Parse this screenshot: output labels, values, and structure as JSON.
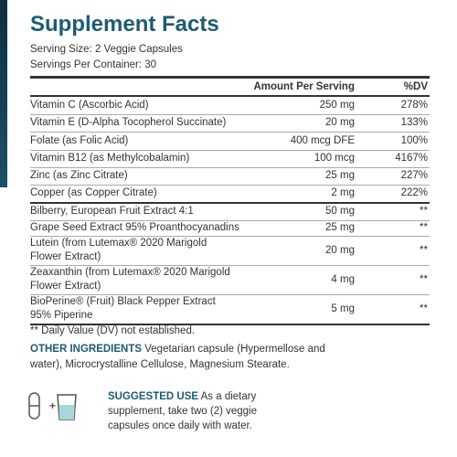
{
  "header": {
    "title": "Supplement Facts",
    "serving_size": "Serving Size: 2 Veggie Capsules",
    "servings_per_container": "Servings Per Container: 30"
  },
  "table": {
    "columns": [
      "Amount Per Serving",
      "%DV"
    ],
    "groups": [
      [
        [
          "Vitamin C (Ascorbic Acid)",
          "250 mg",
          "278%"
        ],
        [
          "Vitamin E (D-Alpha Tocopherol Succinate)",
          "20 mg",
          "133%"
        ],
        [
          "Folate (as Folic Acid)",
          "400 mcg DFE",
          "100%"
        ],
        [
          "Vitamin B12 (as Methylcobalamin)",
          "100 mcg",
          "4167%"
        ],
        [
          "Zinc (as Zinc Citrate)",
          "25 mg",
          "227%"
        ],
        [
          "Copper (as Copper Citrate)",
          "2 mg",
          "222%"
        ]
      ],
      [
        [
          "Bilberry, European Fruit Extract 4:1",
          "50 mg",
          "**"
        ],
        [
          "Grape Seed Extract 95% Proanthocyanadins",
          "25 mg",
          "**"
        ],
        [
          "Lutein (from Lutemax® 2020 Marigold\nFlower Extract)",
          "20 mg",
          "**"
        ],
        [
          "Zeaxanthin (from Lutemax® 2020 Marigold\nFlower Extract)",
          "4 mg",
          "**"
        ],
        [
          "BioPerine® (Fruit) Black Pepper Extract\n95% Piperine",
          "5 mg",
          "**"
        ]
      ]
    ]
  },
  "footnote": "** Daily Value (DV) not established.",
  "other_ingredients": {
    "label": "OTHER INGREDIENTS",
    "text": "Vegetarian capsule (Hypermellose and water), Microcrystalline Cellulose, Magnesium Stearate."
  },
  "suggested_use": {
    "label": "SUGGESTED USE",
    "text": "As a dietary supplement, take two (2) veggie capsules once daily with water."
  }
}
